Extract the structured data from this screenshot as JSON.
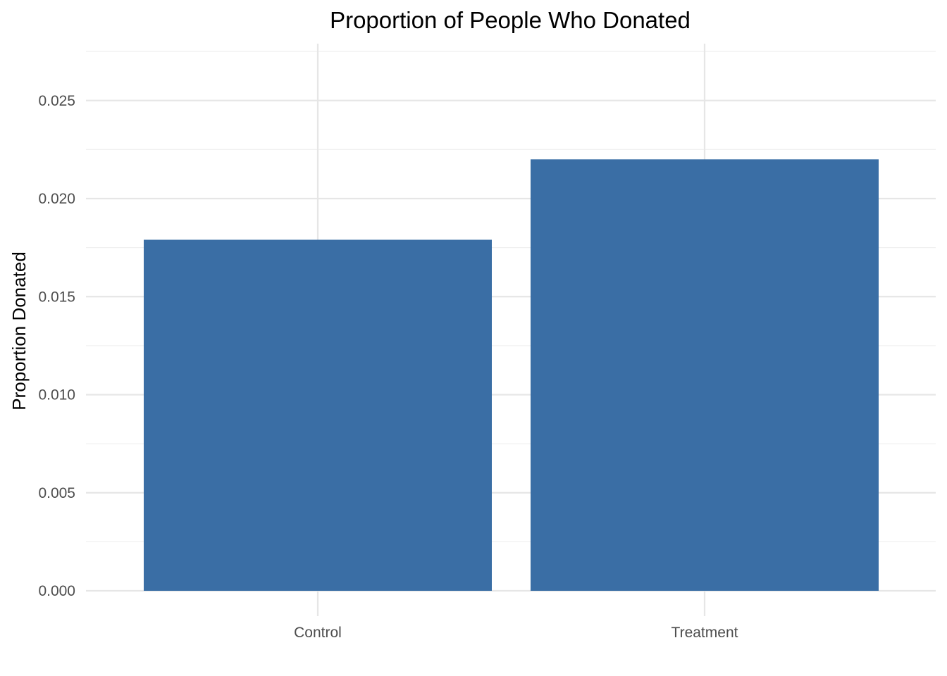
{
  "chart_data": {
    "type": "bar",
    "title": "Proportion of People Who Donated",
    "xlabel": "",
    "ylabel": "Proportion Donated",
    "categories": [
      "Control",
      "Treatment"
    ],
    "values": [
      0.0179,
      0.022
    ],
    "ylim": [
      0,
      0.0279
    ],
    "y_ticks": [
      0,
      0.005,
      0.01,
      0.015,
      0.02,
      0.025
    ],
    "y_tick_labels": [
      "0.000",
      "0.005",
      "0.010",
      "0.015",
      "0.020",
      "0.025"
    ],
    "grid": true,
    "legend": "none",
    "colors": {
      "bar": "#3a6ea5",
      "grid_major": "#e6e6e6",
      "grid_minor": "#f0f0f0",
      "background": "#ffffff"
    }
  }
}
